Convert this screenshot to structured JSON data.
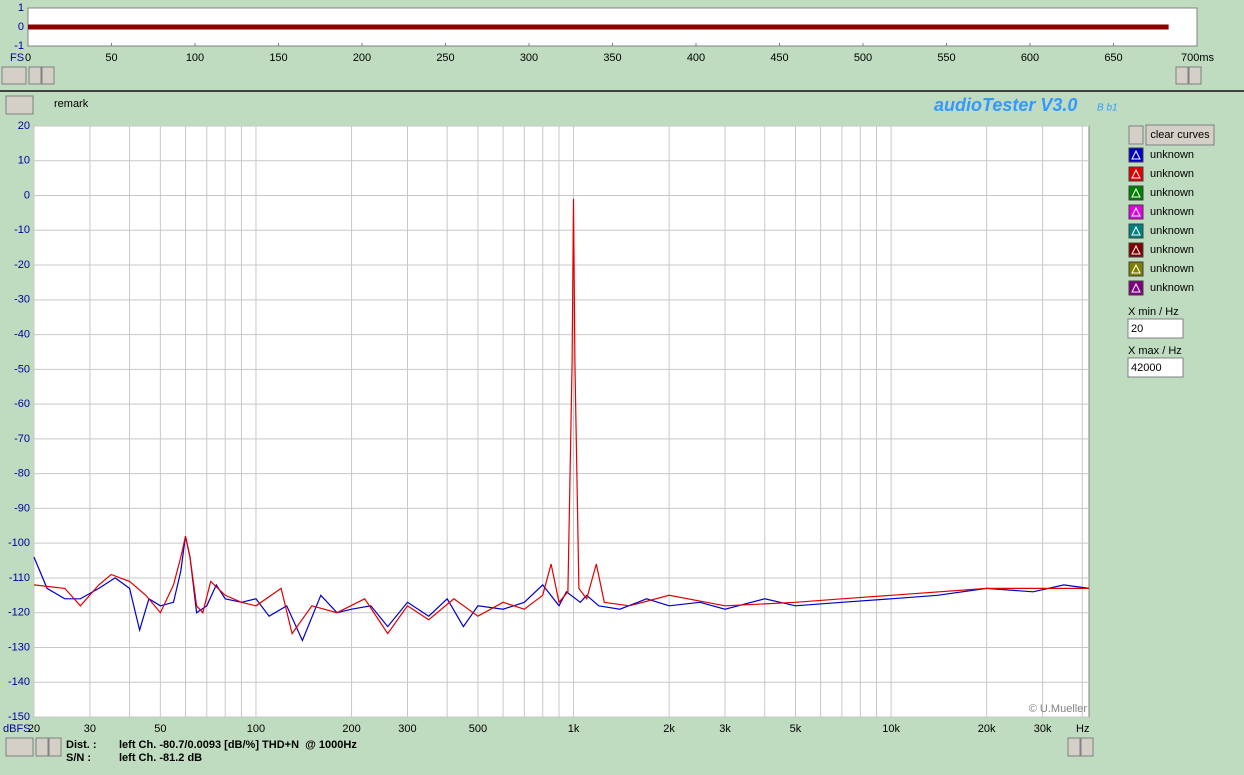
{
  "chart_data": [
    {
      "type": "line",
      "ylabel": "FS",
      "xlim": [
        0,
        700
      ],
      "xticks": [
        0,
        50,
        100,
        150,
        200,
        250,
        300,
        350,
        400,
        450,
        500,
        550,
        600,
        650,
        {
          "value": 700,
          "label": "700ms"
        }
      ],
      "ylim": [
        -1,
        1
      ],
      "yticks": [
        -1,
        0,
        1
      ],
      "series": [
        {
          "color": "#8b0000",
          "x": [
            0,
            683
          ],
          "values": [
            0,
            0
          ]
        }
      ]
    },
    {
      "type": "line",
      "log_x": true,
      "grid": true,
      "ylabel": "dBFS",
      "xlabel": "Hz",
      "annotation": "© U.Mueller",
      "xlim": [
        20,
        42000
      ],
      "xticks": [
        20,
        30,
        50,
        100,
        200,
        300,
        500,
        {
          "value": 1000,
          "label": "1k"
        },
        {
          "value": 2000,
          "label": "2k"
        },
        {
          "value": 3000,
          "label": "3k"
        },
        {
          "value": 5000,
          "label": "5k"
        },
        {
          "value": 10000,
          "label": "10k"
        },
        {
          "value": 20000,
          "label": "20k"
        },
        {
          "value": 30000,
          "label": "30k"
        }
      ],
      "xgrid_minor": [
        40,
        60,
        70,
        80,
        90,
        400,
        600,
        700,
        800,
        900,
        4000,
        6000,
        7000,
        8000,
        9000,
        40000
      ],
      "ylim": [
        -150,
        20
      ],
      "yticks": [
        -150,
        -140,
        -130,
        -120,
        -110,
        -100,
        -90,
        -80,
        -70,
        -60,
        -50,
        -40,
        -30,
        -20,
        -10,
        0,
        10,
        20
      ],
      "series": [
        {
          "name": "unknown",
          "color": "#0000c8",
          "x": [
            20,
            22,
            25,
            28,
            32,
            36,
            40,
            43,
            46,
            50,
            55,
            58,
            60,
            62,
            65,
            70,
            75,
            80,
            90,
            100,
            110,
            125,
            140,
            160,
            180,
            200,
            230,
            260,
            300,
            350,
            400,
            450,
            500,
            600,
            700,
            800,
            900,
            950,
            1050,
            1100,
            1200,
            1400,
            1700,
            2000,
            2500,
            3000,
            4000,
            5000,
            7000,
            10000,
            14000,
            20000,
            28000,
            35000,
            42000
          ],
          "values": [
            -104,
            -113,
            -116,
            -116,
            -113,
            -110,
            -113,
            -125,
            -116,
            -118,
            -117,
            -108,
            -98,
            -104,
            -120,
            -118,
            -112,
            -116,
            -117,
            -116,
            -121,
            -118,
            -128,
            -115,
            -120,
            -119,
            -118,
            -124,
            -117,
            -121,
            -116,
            -124,
            -118,
            -119,
            -117,
            -112,
            -118,
            -114,
            -117,
            -115,
            -118,
            -119,
            -116,
            -118,
            -117,
            -119,
            -116,
            -118,
            -117,
            -116,
            -115,
            -113,
            -114,
            -112,
            -113
          ]
        },
        {
          "name": "unknown",
          "color": "#e00000",
          "x": [
            20,
            25,
            28,
            32,
            35,
            40,
            45,
            50,
            55,
            58,
            60,
            62,
            65,
            68,
            72,
            80,
            90,
            100,
            120,
            130,
            150,
            180,
            220,
            260,
            300,
            350,
            420,
            500,
            600,
            700,
            800,
            850,
            900,
            960,
            990,
            1000,
            1010,
            1040,
            1100,
            1180,
            1250,
            1500,
            2000,
            3000,
            5000,
            7000,
            10000,
            20000,
            42000
          ],
          "values": [
            -112,
            -113,
            -118,
            -112,
            -109,
            -111,
            -115,
            -120,
            -112,
            -104,
            -98,
            -104,
            -118,
            -120,
            -111,
            -115,
            -117,
            -118,
            -113,
            -126,
            -118,
            -120,
            -116,
            -126,
            -118,
            -122,
            -116,
            -121,
            -117,
            -119,
            -115,
            -106,
            -117,
            -114,
            -48,
            -1,
            -48,
            -113,
            -116,
            -106,
            -117,
            -118,
            -115,
            -118,
            -117,
            -116,
            -115,
            -113,
            -113
          ]
        },
        {
          "name": "unknown",
          "color": "#008000",
          "x": [],
          "values": []
        },
        {
          "name": "unknown",
          "color": "#e000e0",
          "x": [],
          "values": []
        },
        {
          "name": "unknown",
          "color": "#008080",
          "x": [],
          "values": []
        },
        {
          "name": "unknown",
          "color": "#800000",
          "x": [],
          "values": []
        },
        {
          "name": "unknown",
          "color": "#808000",
          "x": [],
          "values": []
        },
        {
          "name": "unknown",
          "color": "#800080",
          "x": [],
          "values": []
        }
      ]
    }
  ],
  "ui": {
    "remark": "remark",
    "app_title": "audioTester V3.0",
    "app_version": "B b1",
    "clear_button": "clear curves",
    "xmin_label": "X min / Hz",
    "xmax_label": "X max / Hz",
    "dist_label": "Dist. :",
    "dist_text": "left Ch. -80.7/0.0093 [dB/%] THD+N  @ 1000Hz",
    "sn_label": "S/N :",
    "sn_text": "left Ch. -81.2 dB"
  }
}
